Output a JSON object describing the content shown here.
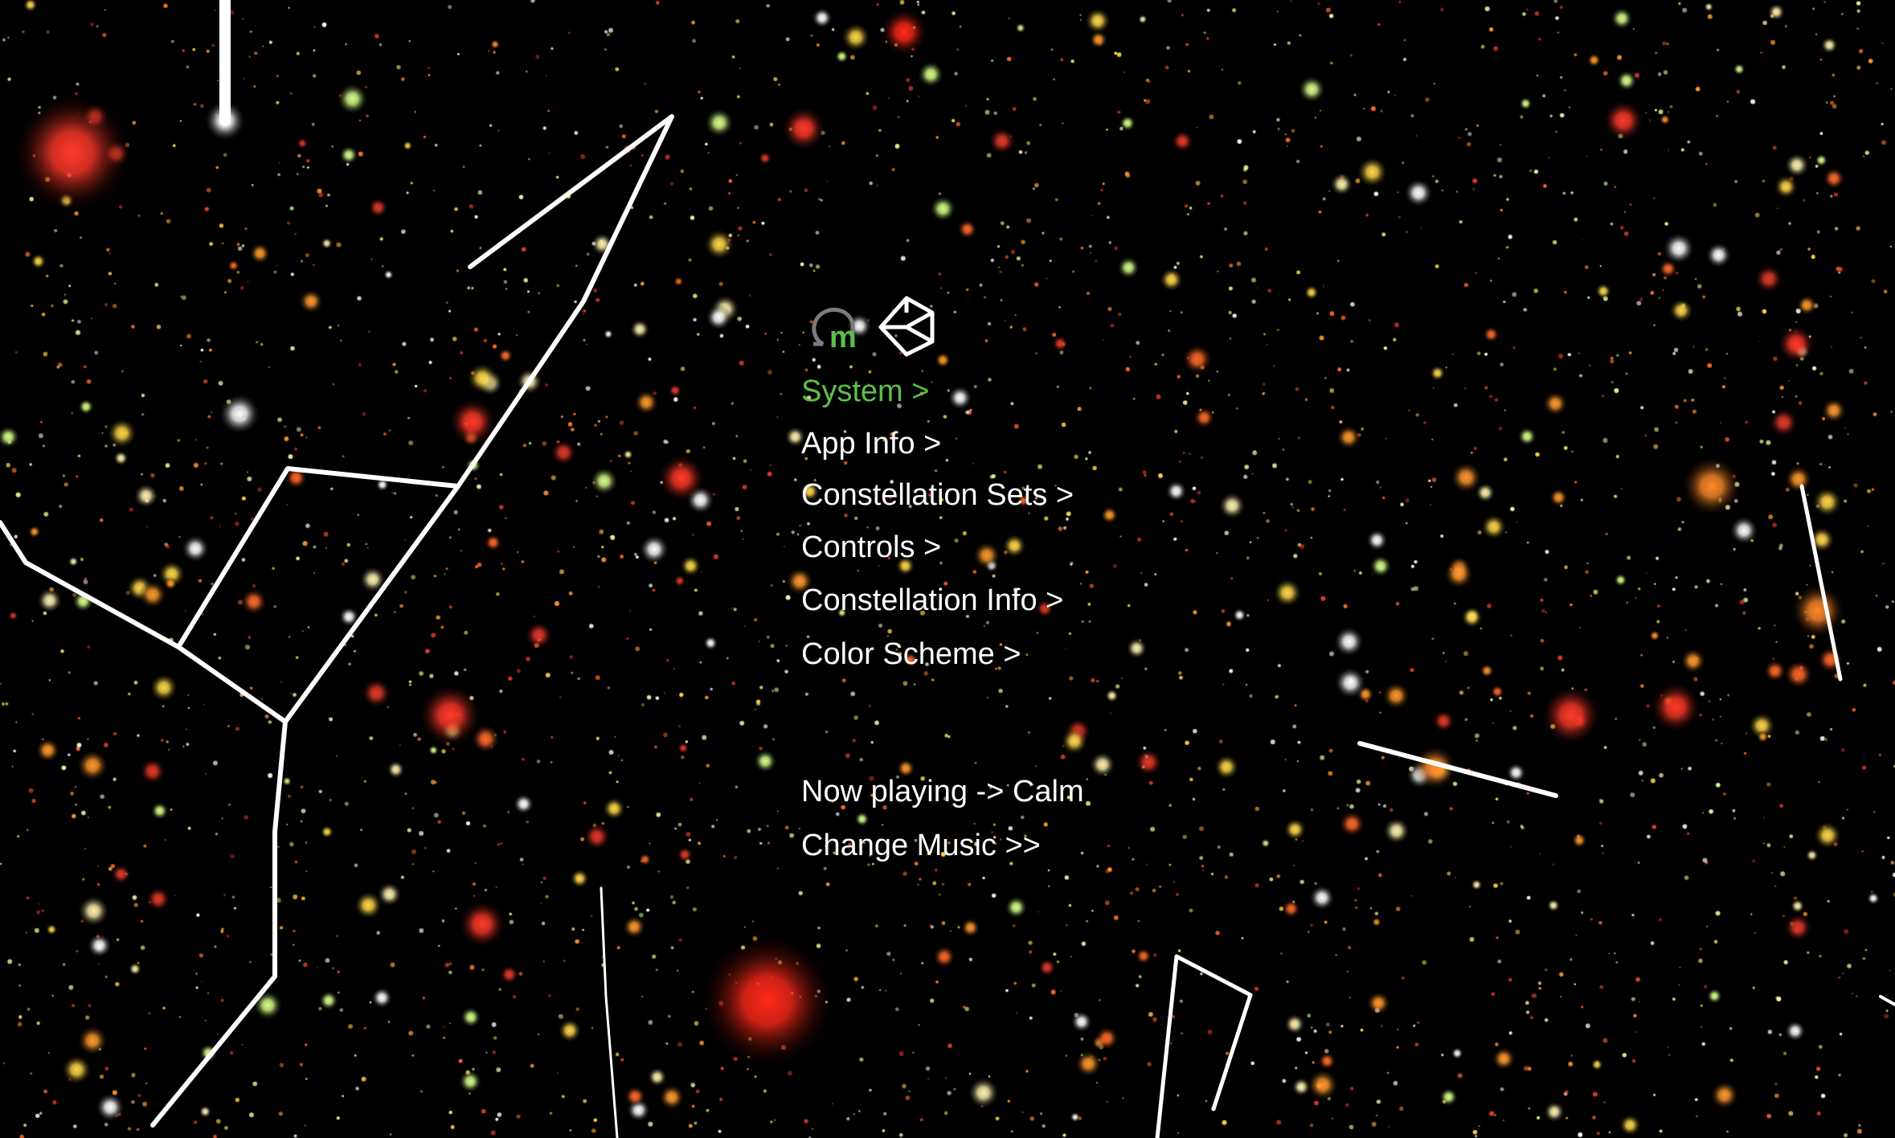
{
  "menu": {
    "items": [
      {
        "label": "System >",
        "active": true
      },
      {
        "label": "App Info >",
        "active": false
      },
      {
        "label": "Constellation Sets >",
        "active": false
      },
      {
        "label": "Controls >",
        "active": false
      },
      {
        "label": "Constellation Info >",
        "active": false
      },
      {
        "label": "Color Scheme >",
        "active": false
      }
    ],
    "now_playing": "Now playing -> Calm",
    "change_music": "Change Music  >>"
  },
  "logos": {
    "left": "omega-m-logo-icon",
    "right": "unity-logo-icon"
  },
  "colors": {
    "background": "#000000",
    "active_menu": "#5cc04a",
    "menu_text": "#ffffff",
    "constellation_line": "#ffffff"
  }
}
